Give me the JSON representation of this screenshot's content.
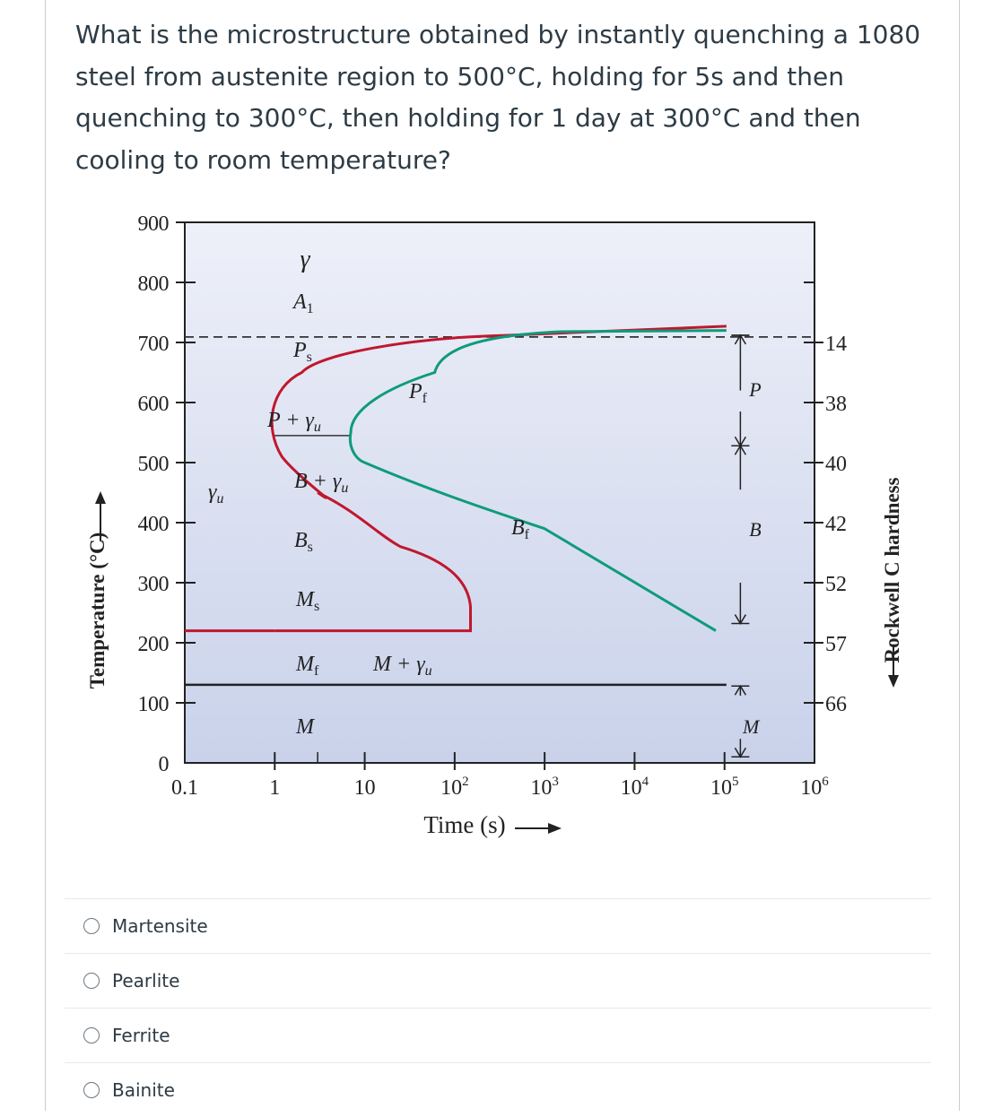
{
  "question": {
    "text": "What is the microstructure obtained by instantly quenching a 1080 steel from austenite region to 500°C, holding for 5s and then quenching to 300°C, then holding for 1 day at 300°C and then cooling to room temperature?"
  },
  "chart_data": {
    "type": "line",
    "ylabel": "Temperature (°C)",
    "xlabel": "Time (s)",
    "y2label": "Rockwell C hardness",
    "x_scale": "log",
    "y_ticks": [
      "0",
      "100",
      "200",
      "300",
      "400",
      "500",
      "600",
      "700",
      "800",
      "900"
    ],
    "x_ticks": [
      {
        "base": "0.1",
        "exp": ""
      },
      {
        "base": "1",
        "exp": ""
      },
      {
        "base": "10",
        "exp": ""
      },
      {
        "base": "10",
        "exp": "2"
      },
      {
        "base": "10",
        "exp": "3"
      },
      {
        "base": "10",
        "exp": "4"
      },
      {
        "base": "10",
        "exp": "5"
      },
      {
        "base": "10",
        "exp": "6"
      }
    ],
    "hardness": [
      {
        "temp": 700,
        "value": "14"
      },
      {
        "temp": 600,
        "value": "38"
      },
      {
        "temp": 500,
        "value": "40"
      },
      {
        "temp": 400,
        "value": "42"
      },
      {
        "temp": 300,
        "value": "52"
      },
      {
        "temp": 200,
        "value": "57"
      },
      {
        "temp": 100,
        "value": "66"
      }
    ],
    "xlim": [
      0.1,
      1000000
    ],
    "ylim": [
      0,
      900
    ],
    "A1_temp": 727,
    "Ms_temp": 220,
    "Mf_temp": 130,
    "start_curve": [
      [
        105000,
        727
      ],
      [
        20,
        705
      ],
      [
        2,
        650
      ],
      [
        1,
        580
      ],
      [
        1.2,
        510
      ],
      [
        3,
        450
      ],
      [
        25,
        360
      ],
      [
        120,
        300
      ],
      [
        150,
        265
      ],
      [
        150,
        220
      ],
      [
        1,
        220
      ]
    ],
    "finish_curve": [
      [
        105000,
        720
      ],
      [
        60,
        650
      ],
      [
        10,
        595
      ],
      [
        7,
        550
      ],
      [
        10,
        500
      ],
      [
        1000,
        390
      ],
      [
        80000,
        220
      ]
    ],
    "series": [
      {
        "name": "start",
        "color": "#c0172e"
      },
      {
        "name": "finish",
        "color": "#0f9b7a"
      }
    ],
    "labels": {
      "gamma": "γ",
      "a1": "A",
      "a1_sub": "1",
      "ps": "P",
      "ps_sub": "s",
      "pf": "P",
      "pf_sub": "f",
      "p_gamma": "P + γ",
      "p_gamma_sub": "u",
      "gamma_u": "γ",
      "gamma_u_sub": "u",
      "b_gamma": "B + γ",
      "b_gamma_sub": "u",
      "bs": "B",
      "bs_sub": "s",
      "bf": "B",
      "bf_sub": "f",
      "ms": "M",
      "ms_sub": "s",
      "mf": "M",
      "mf_sub": "f",
      "m_gamma": "M + γ",
      "m_gamma_sub": "u",
      "m": "M",
      "p_right": "P",
      "b_right": "B",
      "m_right": "M"
    },
    "colors": {
      "plot_bg_top": "#eef0f9",
      "plot_bg_bottom": "#c9d2ea"
    }
  },
  "answers": [
    {
      "label": "Martensite"
    },
    {
      "label": "Pearlite"
    },
    {
      "label": "Ferrite"
    },
    {
      "label": "Bainite"
    }
  ]
}
